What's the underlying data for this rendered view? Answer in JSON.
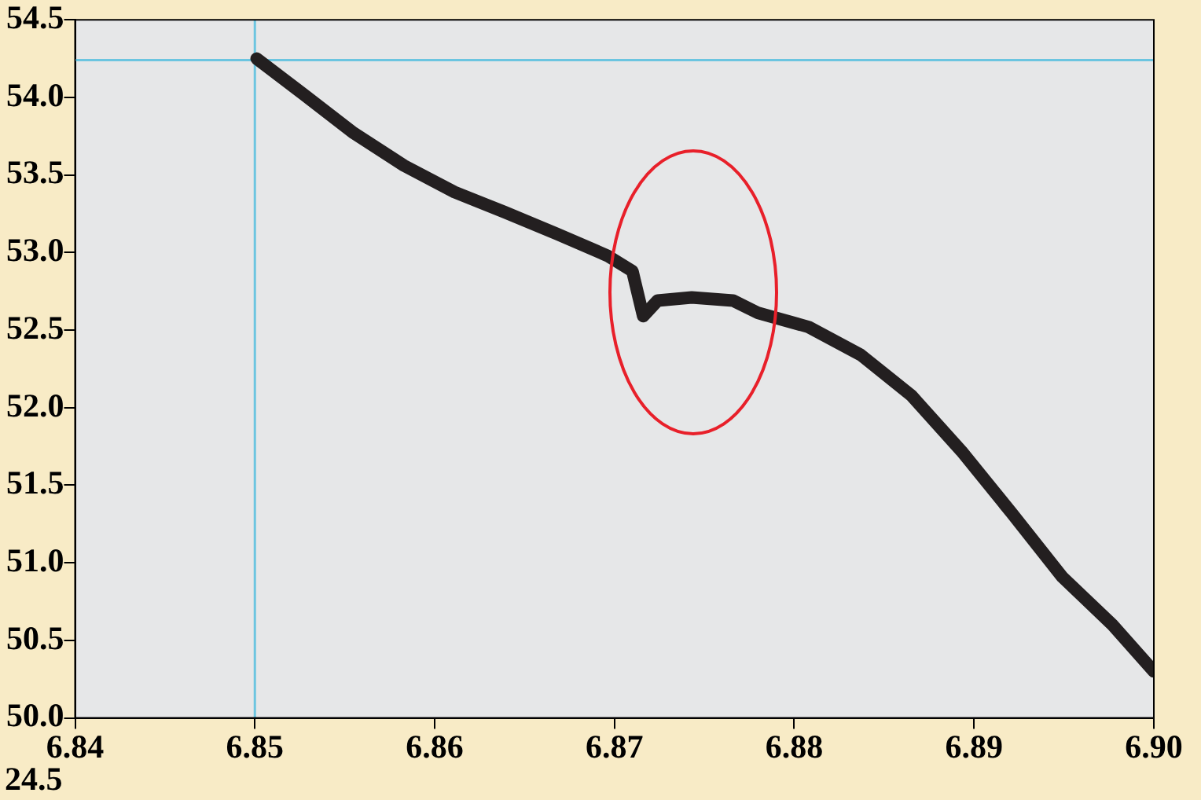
{
  "chart_data": {
    "type": "line",
    "x": [
      6.8501,
      6.8527,
      6.8555,
      6.8583,
      6.8611,
      6.8639,
      6.8668,
      6.8696,
      6.871,
      6.8716,
      6.8724,
      6.8743,
      6.8766,
      6.878,
      6.8808,
      6.8837,
      6.8865,
      6.8893,
      6.8921,
      6.8949,
      6.8977,
      6.9
    ],
    "series": [
      {
        "color": "#231f20",
        "values": [
          54.25,
          54.02,
          53.77,
          53.56,
          53.39,
          53.26,
          53.12,
          52.98,
          52.88,
          52.59,
          52.69,
          52.71,
          52.69,
          52.61,
          52.52,
          52.34,
          52.08,
          51.72,
          51.32,
          50.91,
          50.6,
          50.3
        ]
      }
    ],
    "xlim": [
      6.84,
      6.9
    ],
    "xticks": [
      6.84,
      6.85,
      6.86,
      6.87,
      6.88,
      6.89,
      {
        "value": 6.9,
        "label": "6.90"
      }
    ],
    "ylim": [
      50,
      54.5
    ],
    "yticks": [
      {
        "value": 50,
        "label": "50.0"
      },
      50.5,
      {
        "value": 51,
        "label": "51.0"
      },
      51.5,
      {
        "value": 52,
        "label": "52.0"
      },
      52.5,
      {
        "value": 53,
        "label": "53.0"
      },
      53.5,
      {
        "value": 54,
        "label": "54.0"
      },
      54.5
    ],
    "ref_lines": [
      {
        "axis": "x",
        "value": 6.85,
        "color": "#6cc5e0"
      },
      {
        "axis": "y",
        "value": 54.24,
        "color": "#6cc5e0"
      }
    ],
    "annotations": [
      "24.5"
    ],
    "grid": false,
    "legend": false,
    "marker": "none",
    "line_style": "solid"
  }
}
